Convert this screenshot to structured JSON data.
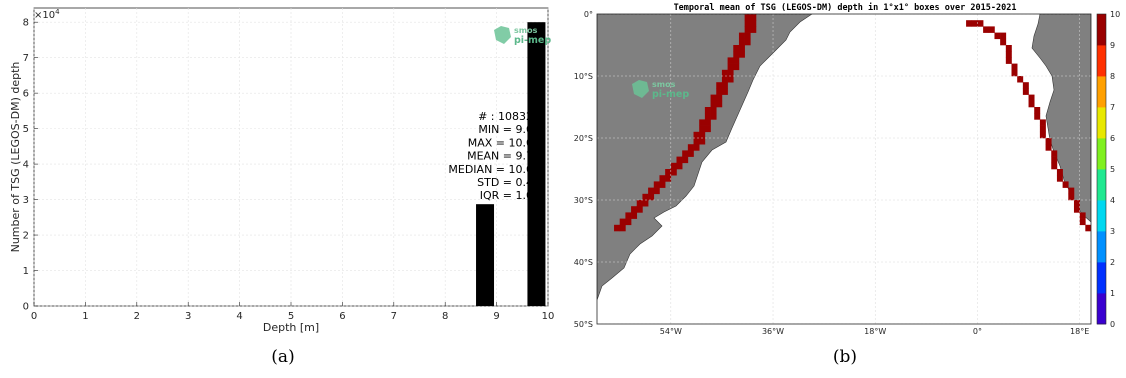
{
  "chart_data": [
    {
      "type": "bar",
      "xlabel": "Depth [m]",
      "ylabel": "Number of TSG (LEGOS-DM) depth",
      "y_multiplier_label": "×10",
      "y_multiplier_exp": "4",
      "xlim": [
        0,
        10
      ],
      "ylim": [
        0,
        84000
      ],
      "x_ticks": [
        "0",
        "1",
        "2",
        "3",
        "4",
        "5",
        "6",
        "7",
        "8",
        "9",
        "10"
      ],
      "y_ticks": [
        "0",
        "1",
        "2",
        "3",
        "4",
        "5",
        "6",
        "7",
        "8"
      ],
      "grid": true,
      "bar_color": "#000000",
      "bars": [
        {
          "x_start": 8.6,
          "x_end": 8.95,
          "value": 28700
        },
        {
          "x_start": 9.6,
          "x_end": 9.95,
          "value": 80000
        }
      ],
      "stats": [
        "# : 108324",
        "MIN = 9.00",
        "MAX =  10.00",
        "MEAN = 9.73",
        "MEDIAN = 10.00",
        "STD = 0.44",
        "IQR = 1.00"
      ],
      "caption": "(a)",
      "logo": {
        "top": "smos",
        "bottom": "pi-mep"
      }
    },
    {
      "type": "heatmap",
      "title": "Temporal mean of TSG (LEGOS-DM) depth in 1°x1° boxes over 2015-2021",
      "lon_range": [
        -67,
        20
      ],
      "lat_range": [
        -50,
        0
      ],
      "lon_ticks": [
        "54°W",
        "36°W",
        "18°W",
        "0°",
        "18°E"
      ],
      "lat_ticks": [
        "0°",
        "10°S",
        "20°S",
        "30°S",
        "40°S",
        "50°S"
      ],
      "colorbar_ticks": [
        "0",
        "1",
        "2",
        "3",
        "4",
        "5",
        "6",
        "7",
        "8",
        "9",
        "10"
      ],
      "colorbar_range": [
        0,
        10
      ],
      "land_color": "#808080",
      "ocean_color": "#ffffff",
      "cell_value": 10,
      "caption": "(b)",
      "logo": {
        "top": "smos",
        "bottom": "pi-mep"
      }
    }
  ]
}
